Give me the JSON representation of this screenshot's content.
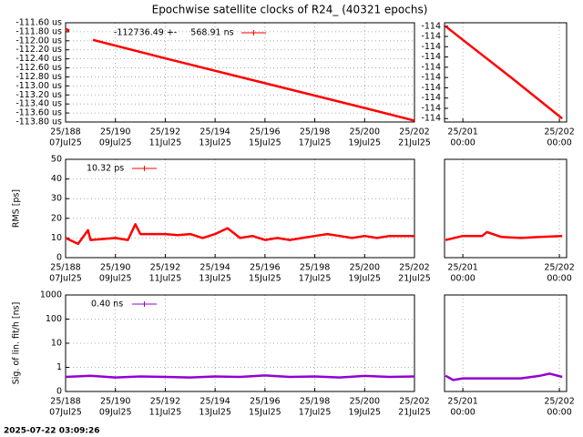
{
  "title": "Epochwise satellite clocks of R24_ (40321 epochs)",
  "footer": "2025-07-22 03:09:26",
  "chart_data": [
    {
      "type": "line",
      "grid": true,
      "xlim": [
        188,
        202
      ],
      "xticks": [
        {
          "value": 188,
          "label": "25/188",
          "sublabel": "07Jul25"
        },
        {
          "value": 190,
          "label": "25/190",
          "sublabel": "09Jul25"
        },
        {
          "value": 192,
          "label": "25/192",
          "sublabel": "11Jul25"
        },
        {
          "value": 194,
          "label": "25/194",
          "sublabel": "13Jul25"
        },
        {
          "value": 196,
          "label": "25/196",
          "sublabel": "15Jul25"
        },
        {
          "value": 198,
          "label": "25/198",
          "sublabel": "17Jul25"
        },
        {
          "value": 200,
          "label": "25/200",
          "sublabel": "19Jul25"
        },
        {
          "value": 202,
          "label": "25/202",
          "sublabel": "21Jul25"
        }
      ],
      "ylim": [
        -113.8,
        -111.6
      ],
      "yticks": [
        {
          "value": -111.6,
          "label": "-111.60 us"
        },
        {
          "value": -111.8,
          "label": "-111.80 us"
        },
        {
          "value": -112.0,
          "label": "-112.00 us"
        },
        {
          "value": -112.2,
          "label": "-112.20 us"
        },
        {
          "value": -112.4,
          "label": "-112.40 us"
        },
        {
          "value": -112.6,
          "label": "-112.60 us"
        },
        {
          "value": -112.8,
          "label": "-112.80 us"
        },
        {
          "value": -113.0,
          "label": "-113.00 us"
        },
        {
          "value": -113.2,
          "label": "-113.20 us"
        },
        {
          "value": -113.4,
          "label": "-113.40 us"
        },
        {
          "value": -113.6,
          "label": "-113.60 us"
        },
        {
          "value": -113.8,
          "label": "-113.80 us"
        }
      ],
      "x": [
        188,
        188.15,
        188.6,
        189.1,
        192,
        196,
        200,
        202
      ],
      "series": [
        {
          "name": "-112736.49 +-     568.91 ns",
          "color": "#ff0000",
          "values": [
            -111.74,
            -111.77,
            null,
            -111.98,
            -112.39,
            -112.94,
            -113.49,
            -113.77
          ]
        }
      ]
    },
    {
      "type": "line",
      "grid": false,
      "xlim": [
        200.81,
        202.075
      ],
      "xticks": [
        {
          "value": 201,
          "label": "25/201",
          "sublabel": "00:00"
        },
        {
          "value": 202,
          "label": "25/202",
          "sublabel": "00:00"
        }
      ],
      "ylim": [
        -113.765,
        -113.62
      ],
      "yticks": [
        {
          "value": -113.625,
          "label": "-114"
        },
        {
          "value": -113.64,
          "label": "-114"
        },
        {
          "value": -113.655,
          "label": "-114"
        },
        {
          "value": -113.67,
          "label": "-114"
        },
        {
          "value": -113.685,
          "label": "-114"
        },
        {
          "value": -113.7,
          "label": "-114"
        },
        {
          "value": -113.715,
          "label": "-114"
        },
        {
          "value": -113.73,
          "label": "-114"
        },
        {
          "value": -113.745,
          "label": "-114"
        },
        {
          "value": -113.76,
          "label": "-114"
        }
      ],
      "x": [
        200.82,
        201.0,
        201.5,
        202.03
      ],
      "series": [
        {
          "color": "#ff0000",
          "values": [
            -113.625,
            -113.645,
            -113.7,
            -113.76
          ]
        }
      ]
    },
    {
      "type": "line",
      "grid": true,
      "ylabel": "RMS [ps]",
      "xlim": [
        188,
        202
      ],
      "xticks": [
        {
          "value": 188,
          "label": "25/188",
          "sublabel": "07Jul25"
        },
        {
          "value": 190,
          "label": "25/190",
          "sublabel": "09Jul25"
        },
        {
          "value": 192,
          "label": "25/192",
          "sublabel": "11Jul25"
        },
        {
          "value": 194,
          "label": "25/194",
          "sublabel": "13Jul25"
        },
        {
          "value": 196,
          "label": "25/196",
          "sublabel": "15Jul25"
        },
        {
          "value": 198,
          "label": "25/198",
          "sublabel": "17Jul25"
        },
        {
          "value": 200,
          "label": "25/200",
          "sublabel": "19Jul25"
        },
        {
          "value": 202,
          "label": "25/202",
          "sublabel": "21Jul25"
        }
      ],
      "ylim": [
        0,
        50
      ],
      "yticks": [
        0,
        10,
        20,
        30,
        40,
        50
      ],
      "x": [
        188,
        188.5,
        188.9,
        189,
        189.5,
        190,
        190.5,
        190.8,
        191,
        191.5,
        192,
        192.5,
        193,
        193.5,
        194,
        194.5,
        195,
        195.5,
        196,
        196.5,
        197,
        197.5,
        198,
        198.5,
        199,
        199.5,
        200,
        200.5,
        201,
        201.5,
        202
      ],
      "series": [
        {
          "name": "10.32 ps",
          "color": "#ff0000",
          "values": [
            10,
            7,
            14,
            9,
            9.5,
            10,
            9,
            17,
            12,
            12,
            12,
            11.5,
            12,
            10,
            12,
            15,
            10,
            11,
            9,
            10,
            9,
            10,
            11,
            12,
            11,
            10,
            11,
            10,
            11,
            11,
            11
          ]
        }
      ]
    },
    {
      "type": "line",
      "grid": false,
      "xlim": [
        200.81,
        202.075
      ],
      "xticks": [
        {
          "value": 201,
          "label": "25/201",
          "sublabel": "00:00"
        },
        {
          "value": 202,
          "label": "25/202",
          "sublabel": "00:00"
        }
      ],
      "ylim": [
        0,
        50
      ],
      "x": [
        200.82,
        201.0,
        201.2,
        201.25,
        201.4,
        201.6,
        201.8,
        202.03
      ],
      "series": [
        {
          "color": "#ff0000",
          "values": [
            9,
            11,
            11,
            13,
            10.5,
            10,
            10.5,
            11
          ]
        }
      ]
    },
    {
      "type": "line",
      "grid": true,
      "log_y": true,
      "ylabel": "Sig. of lin. fit/h [ns]",
      "xlim": [
        188,
        202
      ],
      "xticks": [
        {
          "value": 188,
          "label": "25/188",
          "sublabel": "07Jul25"
        },
        {
          "value": 190,
          "label": "25/190",
          "sublabel": "09Jul25"
        },
        {
          "value": 192,
          "label": "25/192",
          "sublabel": "11Jul25"
        },
        {
          "value": 194,
          "label": "25/194",
          "sublabel": "13Jul25"
        },
        {
          "value": 196,
          "label": "25/196",
          "sublabel": "15Jul25"
        },
        {
          "value": 198,
          "label": "25/198",
          "sublabel": "17Jul25"
        },
        {
          "value": 200,
          "label": "25/200",
          "sublabel": "19Jul25"
        },
        {
          "value": 202,
          "label": "25/202",
          "sublabel": "21Jul25"
        }
      ],
      "ylim": [
        0.1,
        1000
      ],
      "yticks": [
        {
          "value": 0.1,
          "label": "0"
        },
        1,
        10,
        100,
        1000
      ],
      "x": [
        188,
        189,
        190,
        191,
        192,
        193,
        194,
        195,
        196,
        197,
        198,
        199,
        200,
        201,
        202
      ],
      "series": [
        {
          "name": "0.40 ns",
          "color": "#9400d3",
          "values": [
            0.4,
            0.45,
            0.38,
            0.42,
            0.4,
            0.38,
            0.42,
            0.4,
            0.46,
            0.4,
            0.42,
            0.38,
            0.44,
            0.4,
            0.42
          ]
        }
      ]
    },
    {
      "type": "line",
      "grid": false,
      "log_y": true,
      "xlim": [
        200.81,
        202.075
      ],
      "xticks": [
        {
          "value": 201,
          "label": "25/201",
          "sublabel": "00:00"
        },
        {
          "value": 202,
          "label": "25/202",
          "sublabel": "00:00"
        }
      ],
      "ylim": [
        0.1,
        1000
      ],
      "x": [
        200.82,
        200.9,
        201.0,
        201.3,
        201.6,
        201.8,
        201.9,
        202.03
      ],
      "series": [
        {
          "color": "#9400d3",
          "values": [
            0.45,
            0.3,
            0.35,
            0.35,
            0.35,
            0.45,
            0.55,
            0.4
          ]
        }
      ]
    }
  ]
}
